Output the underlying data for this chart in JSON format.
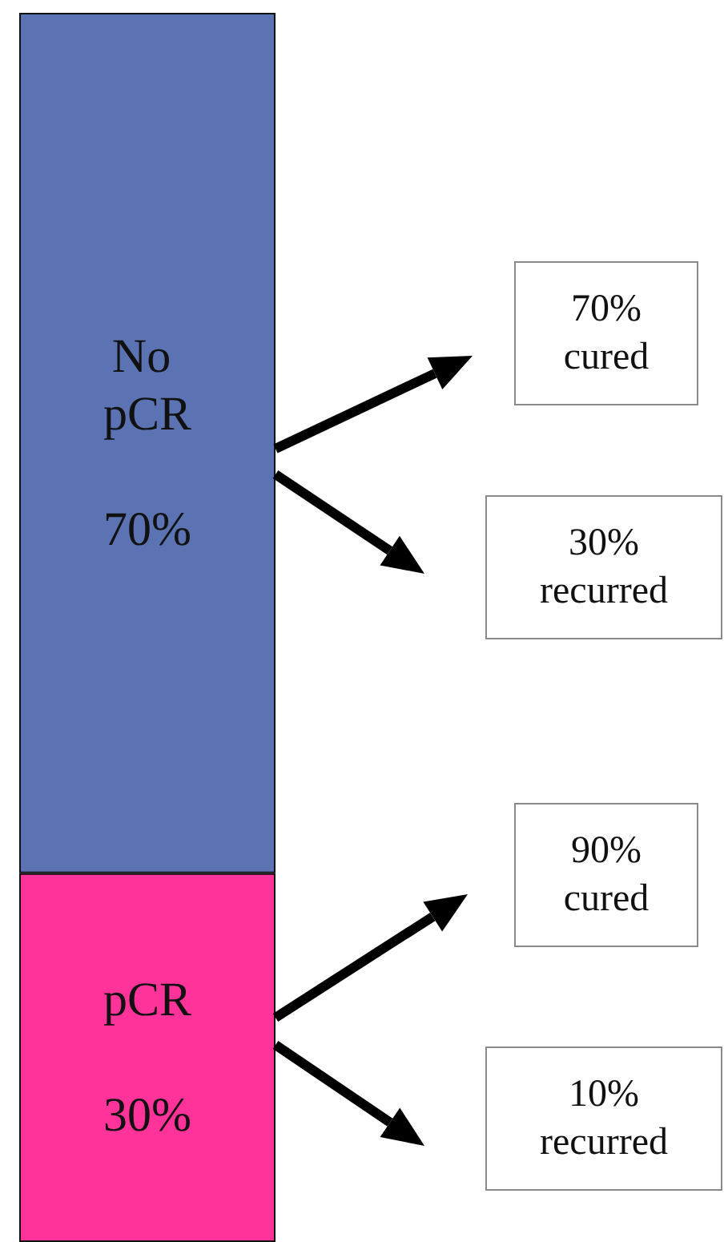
{
  "chart_data": {
    "type": "bar",
    "stacked": true,
    "tick_labels": false,
    "categories": [
      null
    ],
    "series": [
      {
        "name": "pCR",
        "color": "#ff3399",
        "values": [
          30
        ],
        "value_labels": [
          "30%"
        ]
      },
      {
        "name": "No pCR",
        "color": "#5b73b3",
        "values": [
          70
        ],
        "value_labels": [
          "70%"
        ]
      }
    ],
    "annotations": [
      "70% cured",
      "30% recurred",
      "90% cured",
      "10% recurred"
    ]
  }
}
